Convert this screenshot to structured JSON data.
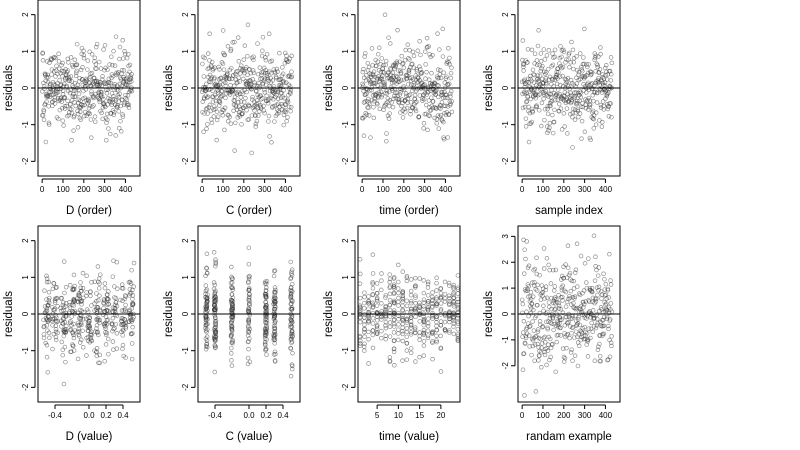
{
  "figure": {
    "colors": {
      "points": "#333333",
      "axes": "#000000",
      "background": "#ffffff"
    }
  },
  "chart_data": [
    {
      "type": "scatter",
      "title": "",
      "xlabel": "D (order)",
      "ylabel": "residuals",
      "xlim": [
        -20,
        470
      ],
      "ylim": [
        -2.4,
        2.4
      ],
      "xticks": [
        0,
        100,
        200,
        300,
        400
      ],
      "xtick_labels": [
        "0",
        "100",
        "200",
        "300",
        "400"
      ],
      "yticks": [
        -2,
        -1,
        0,
        1,
        2
      ],
      "ytick_labels": [
        "-2",
        "-1",
        "0",
        "1",
        "2"
      ],
      "reference_line_y": 0,
      "n_points": 432,
      "x_pattern": "index",
      "y_sd": 0.55
    },
    {
      "type": "scatter",
      "title": "",
      "xlabel": "C (order)",
      "ylabel": "residuals",
      "xlim": [
        -20,
        470
      ],
      "ylim": [
        -2.4,
        2.4
      ],
      "xticks": [
        0,
        100,
        200,
        300,
        400
      ],
      "xtick_labels": [
        "0",
        "100",
        "200",
        "300",
        "400"
      ],
      "yticks": [
        -2,
        -1,
        0,
        1,
        2
      ],
      "ytick_labels": [
        "-2",
        "-1",
        "0",
        "1",
        "2"
      ],
      "reference_line_y": 0,
      "n_points": 432,
      "x_pattern": "index",
      "y_sd": 0.55
    },
    {
      "type": "scatter",
      "title": "",
      "xlabel": "time (order)",
      "ylabel": "residuals",
      "xlim": [
        -20,
        470
      ],
      "ylim": [
        -2.4,
        2.4
      ],
      "xticks": [
        0,
        100,
        200,
        300,
        400
      ],
      "xtick_labels": [
        "0",
        "100",
        "200",
        "300",
        "400"
      ],
      "yticks": [
        -2,
        -1,
        0,
        1,
        2
      ],
      "ytick_labels": [
        "-2",
        "-1",
        "0",
        "1",
        "2"
      ],
      "reference_line_y": 0,
      "n_points": 432,
      "x_pattern": "index",
      "y_sd": 0.55
    },
    {
      "type": "scatter",
      "title": "",
      "xlabel": "sample index",
      "ylabel": "residuals",
      "xlim": [
        -20,
        470
      ],
      "ylim": [
        -2.4,
        2.4
      ],
      "xticks": [
        0,
        100,
        200,
        300,
        400
      ],
      "xtick_labels": [
        "0",
        "100",
        "200",
        "300",
        "400"
      ],
      "yticks": [
        -2,
        -1,
        0,
        1,
        2
      ],
      "ytick_labels": [
        "-2",
        "-1",
        "0",
        "1",
        "2"
      ],
      "reference_line_y": 0,
      "n_points": 432,
      "x_pattern": "index",
      "y_sd": 0.55
    },
    {
      "type": "scatter",
      "title": "",
      "xlabel": "D (value)",
      "ylabel": "residuals",
      "xlim": [
        -0.6,
        0.6
      ],
      "ylim": [
        -2.4,
        2.4
      ],
      "xticks": [
        -0.4,
        0,
        0.2,
        0.4
      ],
      "xtick_labels": [
        "-0.4",
        "0.0",
        "0.2",
        "0.4"
      ],
      "yticks": [
        -2,
        -1,
        0,
        1,
        2
      ],
      "ytick_labels": [
        "-2",
        "-1",
        "0",
        "1",
        "2"
      ],
      "reference_line_y": 0,
      "n_points": 432,
      "x_pattern": "jittered",
      "x_levels": [
        -0.5,
        -0.4,
        -0.3,
        -0.2,
        -0.1,
        0,
        0.1,
        0.2,
        0.3,
        0.4,
        0.5
      ],
      "x_jitter": 0.035,
      "y_sd": 0.55
    },
    {
      "type": "scatter",
      "title": "",
      "xlabel": "C (value)",
      "ylabel": "residuals",
      "xlim": [
        -0.6,
        0.6
      ],
      "ylim": [
        -2.4,
        2.4
      ],
      "xticks": [
        -0.4,
        0,
        0.2,
        0.4
      ],
      "xtick_labels": [
        "-0.4",
        "0.0",
        "0.2",
        "0.4"
      ],
      "yticks": [
        -2,
        -1,
        0,
        1,
        2
      ],
      "ytick_labels": [
        "-2",
        "-1",
        "0",
        "1",
        "2"
      ],
      "reference_line_y": 0,
      "n_points": 432,
      "x_pattern": "levels",
      "x_levels": [
        -0.5,
        -0.4,
        -0.2,
        0,
        0.2,
        0.3,
        0.5
      ],
      "x_jitter": 0.012,
      "y_sd": 0.55
    },
    {
      "type": "scatter",
      "title": "",
      "xlabel": "time (value)",
      "ylabel": "residuals",
      "xlim": [
        0.5,
        24.5
      ],
      "ylim": [
        -2.4,
        2.4
      ],
      "xticks": [
        5,
        10,
        15,
        20
      ],
      "xtick_labels": [
        "5",
        "10",
        "15",
        "20"
      ],
      "yticks": [
        -2,
        -1,
        0,
        1,
        2
      ],
      "ytick_labels": [
        "-2",
        "-1",
        "0",
        "1",
        "2"
      ],
      "reference_line_y": 0,
      "n_points": 432,
      "x_pattern": "levels",
      "x_levels": [
        1,
        2,
        3,
        4,
        5,
        6,
        7,
        8,
        9,
        10,
        11,
        12,
        13,
        14,
        15,
        16,
        17,
        18,
        19,
        20,
        21,
        22,
        23,
        24
      ],
      "x_jitter": 0.05,
      "y_sd": 0.55
    },
    {
      "type": "scatter",
      "title": "",
      "xlabel": "randam example",
      "ylabel": "residuals",
      "xlim": [
        -20,
        470
      ],
      "ylim": [
        -3.4,
        3.4
      ],
      "xticks": [
        0,
        100,
        200,
        300,
        400
      ],
      "xtick_labels": [
        "0",
        "100",
        "200",
        "300",
        "400"
      ],
      "yticks": [
        -2,
        -1,
        0,
        1,
        2,
        3
      ],
      "ytick_labels": [
        "-2",
        "-1",
        "0",
        "1",
        "2",
        "3"
      ],
      "reference_line_y": 0,
      "n_points": 432,
      "x_pattern": "index",
      "y_sd": 1.0
    }
  ]
}
